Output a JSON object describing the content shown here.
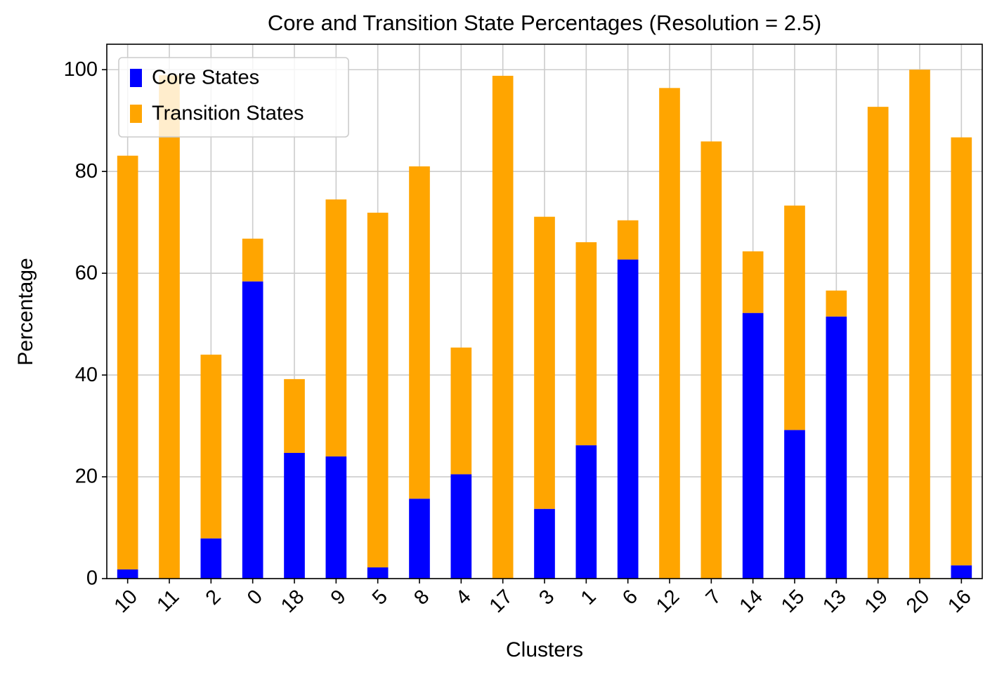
{
  "chart_data": {
    "type": "stacked-bar",
    "title": "Core and Transition State Percentages (Resolution = 2.5)",
    "x_label": "Clusters",
    "y_label": "Percentage",
    "categories": [
      "10",
      "11",
      "2",
      "0",
      "18",
      "9",
      "5",
      "8",
      "4",
      "17",
      "3",
      "1",
      "6",
      "12",
      "7",
      "14",
      "15",
      "13",
      "19",
      "20",
      "16"
    ],
    "series": [
      {
        "name": "Core States",
        "color": "#0000ff",
        "values": [
          1.8,
          0,
          7.9,
          58.4,
          24.7,
          24.0,
          2.2,
          15.7,
          20.5,
          0,
          13.7,
          26.2,
          62.7,
          0,
          0,
          52.2,
          29.2,
          51.5,
          0,
          0,
          2.6
        ]
      },
      {
        "name": "Transition States",
        "color": "#ffa500",
        "values": [
          81.3,
          98.9,
          36.1,
          8.4,
          14.5,
          50.5,
          69.7,
          65.3,
          24.9,
          98.8,
          57.4,
          39.9,
          7.7,
          96.4,
          85.9,
          12.1,
          44.1,
          5.1,
          92.7,
          100,
          84.1
        ]
      }
    ],
    "ylim": [
      0,
      105
    ],
    "yticks": [
      0,
      20,
      40,
      60,
      80,
      100
    ],
    "grid": true,
    "legend": "upper-left"
  }
}
